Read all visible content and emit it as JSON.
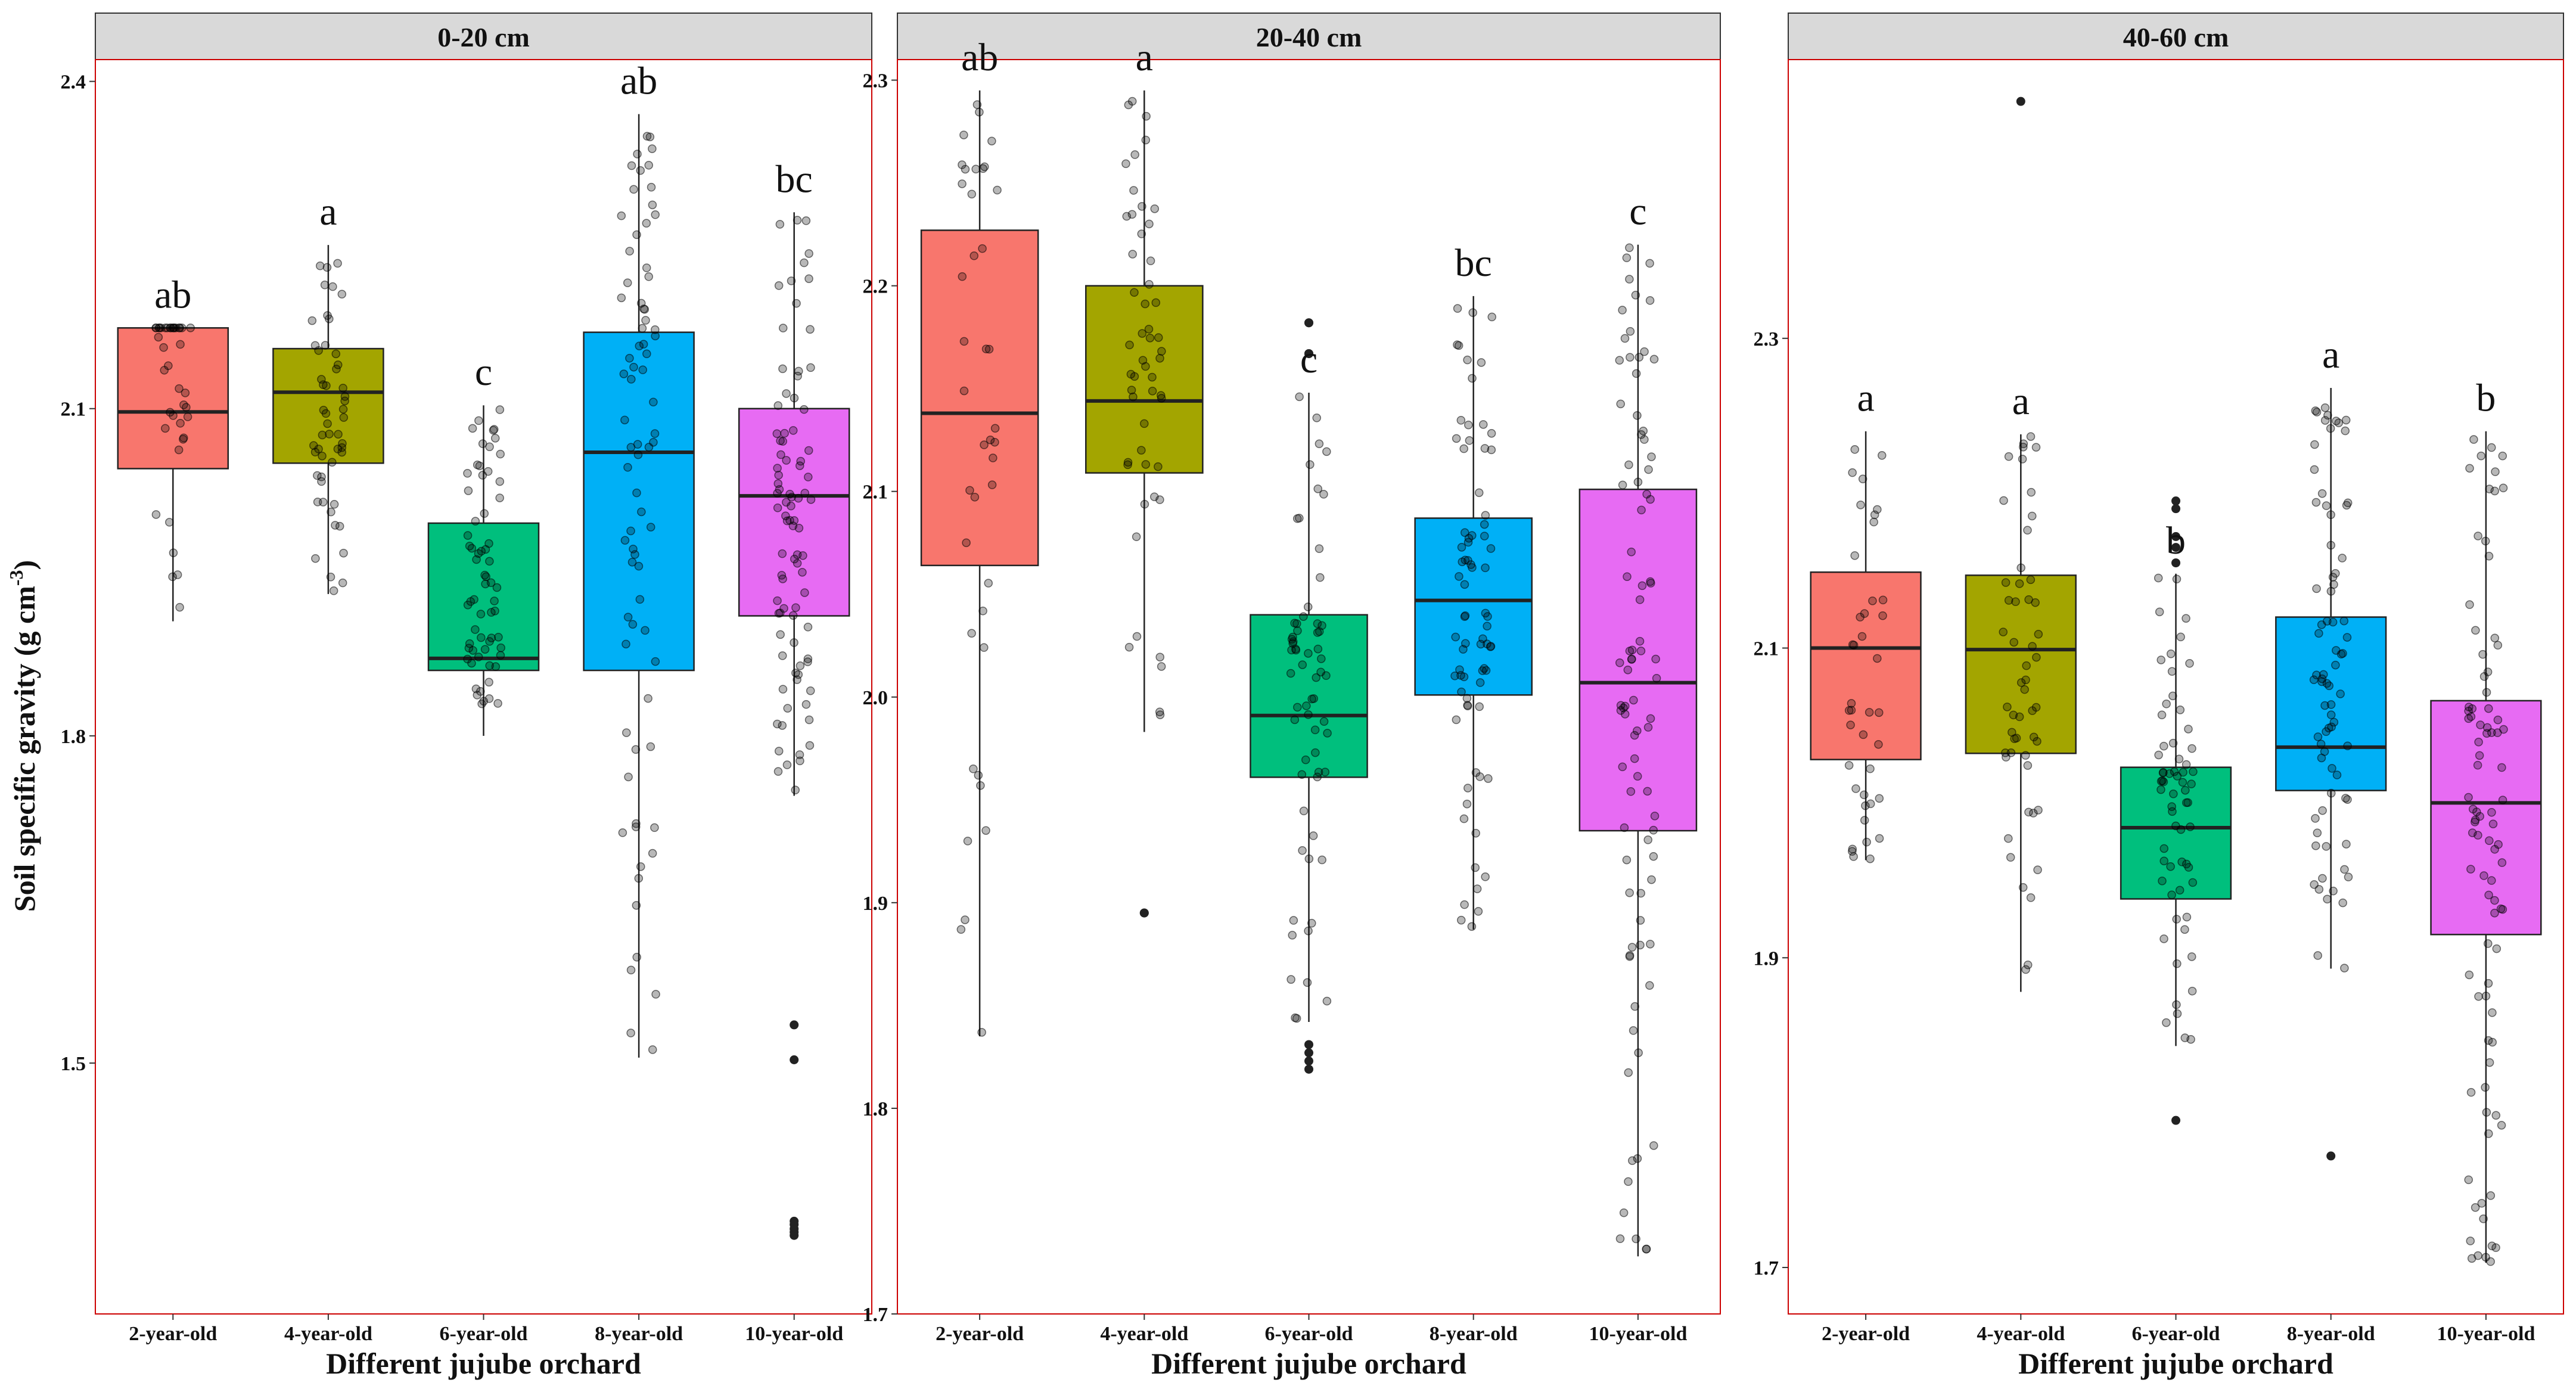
{
  "chart_data": {
    "type": "box",
    "ylabel": "Soil specific gravity (g cm",
    "ylabel_sup": "-3",
    "ylabel_close": ")",
    "xlabel": "Different jujube orchard",
    "categories": [
      "2-year-old",
      "4-year-old",
      "6-year-old",
      "8-year-old",
      "10-year-old"
    ],
    "colors": [
      "#F8766D",
      "#A3A500",
      "#00BF7D",
      "#00B0F6",
      "#E76BF3"
    ],
    "facet_border_color": "#cc0000",
    "strip_fill": "#d9d9d9",
    "facets": [
      {
        "label": "0-20 cm",
        "ylim": [
          1.27,
          2.42
        ],
        "yticks": [
          1.5,
          1.8,
          2.1,
          2.4
        ],
        "ytick_labels": [
          "1.5",
          "1.8",
          "2.1",
          "2.4"
        ],
        "boxes": [
          {
            "letter": "ab",
            "whisker_low": 1.905,
            "q1": 2.045,
            "median": 2.097,
            "q3": 2.174,
            "whisker_high": 2.174,
            "outliers": []
          },
          {
            "letter": "a",
            "whisker_low": 1.93,
            "q1": 2.05,
            "median": 2.115,
            "q3": 2.155,
            "whisker_high": 2.25,
            "outliers": []
          },
          {
            "letter": "c",
            "whisker_low": 1.8,
            "q1": 1.86,
            "median": 1.871,
            "q3": 1.995,
            "whisker_high": 2.103,
            "outliers": []
          },
          {
            "letter": "ab",
            "whisker_low": 1.505,
            "q1": 1.86,
            "median": 2.06,
            "q3": 2.17,
            "whisker_high": 2.37,
            "outliers": []
          },
          {
            "letter": "bc",
            "whisker_low": 1.745,
            "q1": 1.91,
            "median": 2.02,
            "q3": 2.1,
            "whisker_high": 2.28,
            "outliers": [
              1.535,
              1.503,
              1.355,
              1.352,
              1.348,
              1.345,
              1.342
            ]
          }
        ]
      },
      {
        "label": "20-40 cm",
        "ylim": [
          1.7,
          2.31
        ],
        "yticks": [
          1.7,
          1.8,
          1.9,
          2.0,
          2.1,
          2.2,
          2.3
        ],
        "ytick_labels": [
          "1.7",
          "1.8",
          "1.9",
          "2.0",
          "2.1",
          "2.2",
          "2.3"
        ],
        "boxes": [
          {
            "letter": "ab",
            "whisker_low": 1.835,
            "q1": 2.064,
            "median": 2.138,
            "q3": 2.227,
            "whisker_high": 2.295,
            "outliers": []
          },
          {
            "letter": "a",
            "whisker_low": 1.983,
            "q1": 2.109,
            "median": 2.144,
            "q3": 2.2,
            "whisker_high": 2.295,
            "outliers": [
              1.895,
              1.895
            ]
          },
          {
            "letter": "c",
            "whisker_low": 1.842,
            "q1": 1.961,
            "median": 1.991,
            "q3": 2.04,
            "whisker_high": 2.148,
            "outliers": [
              2.182,
              2.182,
              2.167,
              2.167,
              1.831,
              1.827,
              1.823,
              1.819
            ]
          },
          {
            "letter": "bc",
            "whisker_low": 1.887,
            "q1": 2.001,
            "median": 2.047,
            "q3": 2.087,
            "whisker_high": 2.195,
            "outliers": []
          },
          {
            "letter": "c",
            "whisker_low": 1.728,
            "q1": 1.935,
            "median": 2.007,
            "q3": 2.101,
            "whisker_high": 2.22,
            "outliers": []
          }
        ]
      },
      {
        "label": "40-60 cm",
        "ylim": [
          1.67,
          2.48
        ],
        "yticks": [
          1.7,
          1.9,
          2.1,
          2.3
        ],
        "ytick_labels": [
          "1.7",
          "1.9",
          "2.1",
          "2.3"
        ],
        "boxes": [
          {
            "letter": "a",
            "whisker_low": 1.963,
            "q1": 2.028,
            "median": 2.1,
            "q3": 2.149,
            "whisker_high": 2.24,
            "outliers": []
          },
          {
            "letter": "a",
            "whisker_low": 1.878,
            "q1": 2.032,
            "median": 2.099,
            "q3": 2.147,
            "whisker_high": 2.238,
            "outliers": [
              2.453
            ]
          },
          {
            "letter": "b",
            "whisker_low": 1.843,
            "q1": 1.938,
            "median": 1.984,
            "q3": 2.023,
            "whisker_high": 2.148,
            "outliers": [
              2.195,
              2.19,
              2.172,
              2.165,
              2.155,
              1.795
            ]
          },
          {
            "letter": "a",
            "whisker_low": 1.893,
            "q1": 2.008,
            "median": 2.036,
            "q3": 2.12,
            "whisker_high": 2.268,
            "outliers": [
              1.772
            ]
          },
          {
            "letter": "b",
            "whisker_low": 1.703,
            "q1": 1.915,
            "median": 2.0,
            "q3": 2.066,
            "whisker_high": 2.24,
            "outliers": []
          }
        ]
      }
    ]
  }
}
